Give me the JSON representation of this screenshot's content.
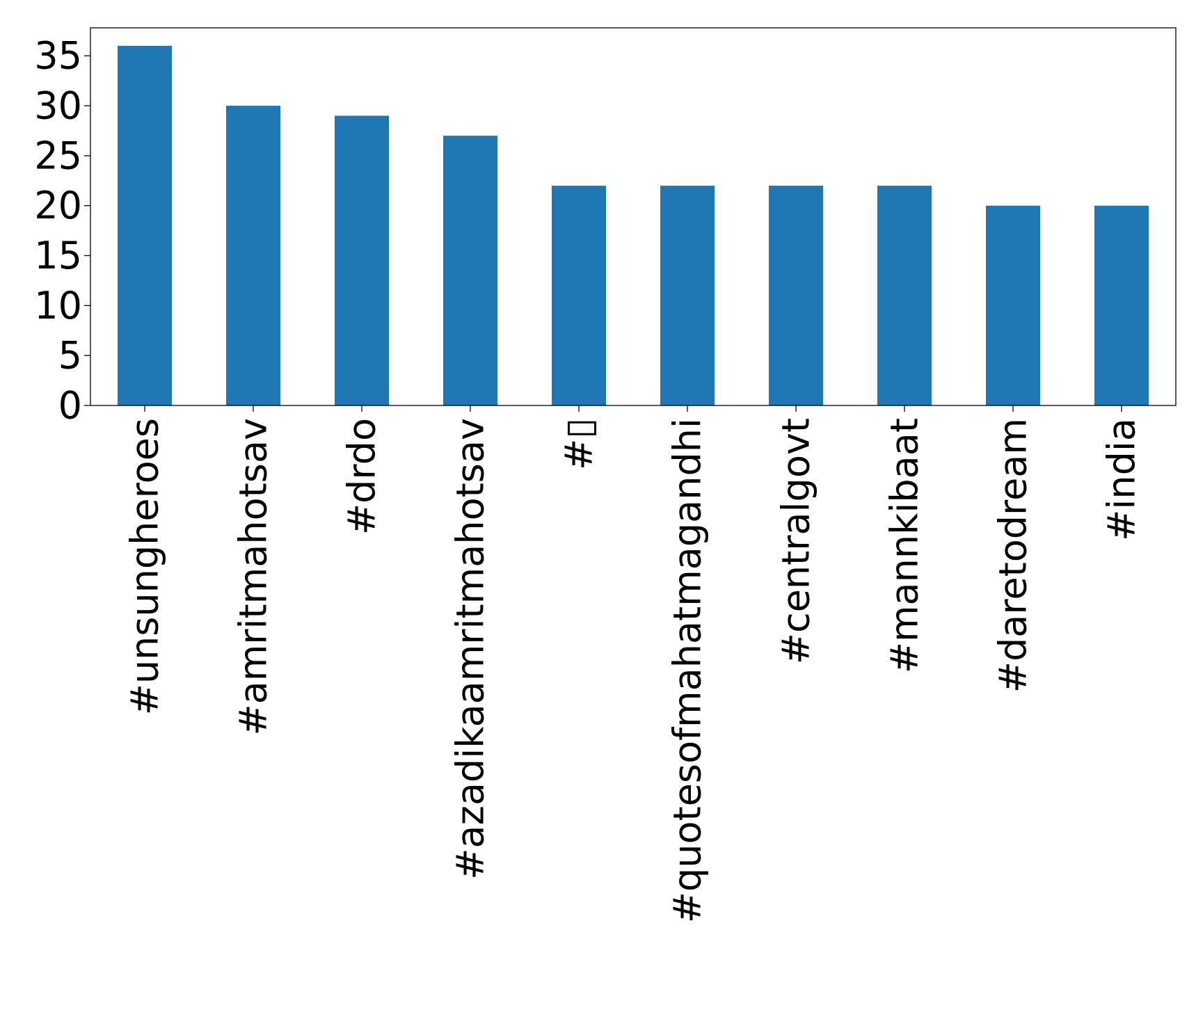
{
  "chart_data": {
    "type": "bar",
    "title": "",
    "xlabel": "",
    "ylabel": "",
    "categories": [
      "#unsungheroes",
      "#amritmahotsav",
      "#drdo",
      "#azadikaamritmahotsav",
      "#▯",
      "#quotesofmahatmagandhi",
      "#centralgovt",
      "#mannkibaat",
      "#daretodream",
      "#india"
    ],
    "values": [
      36,
      30,
      29,
      27,
      22,
      22,
      22,
      22,
      20,
      20
    ],
    "ylim": [
      0,
      37.8
    ],
    "yticks": [
      0,
      5,
      10,
      15,
      20,
      25,
      30,
      35
    ],
    "bar_color": "#1f77b4",
    "grid": false,
    "legend": "none"
  }
}
